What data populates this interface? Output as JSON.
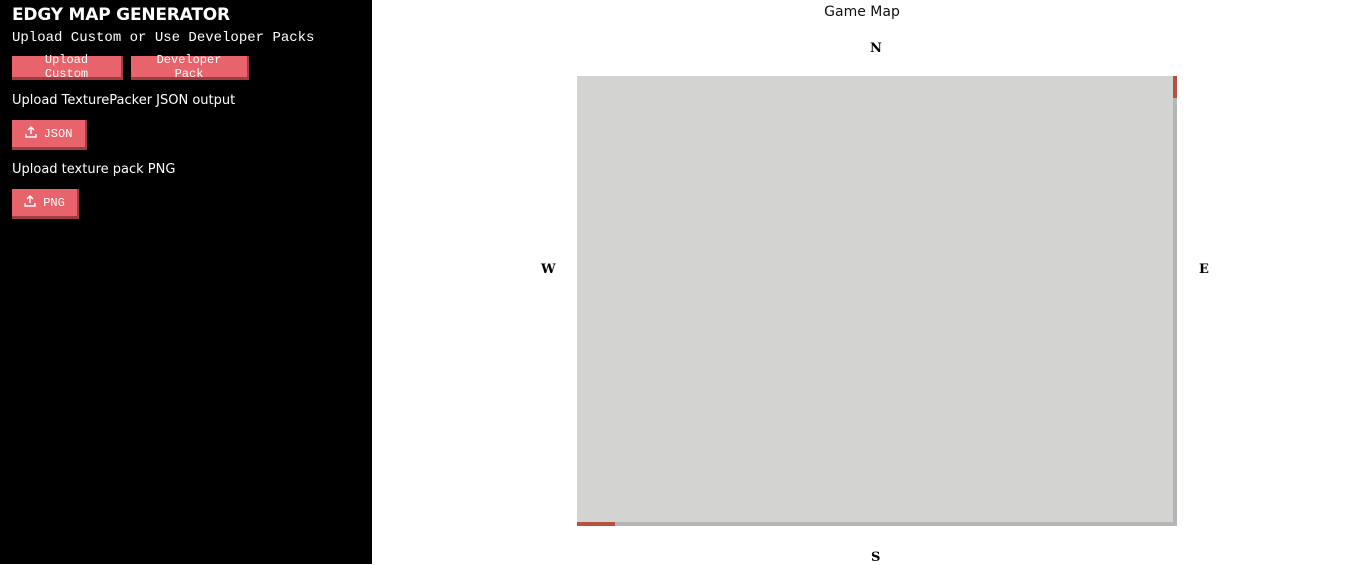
{
  "sidebar": {
    "title": "EDGY MAP GENERATOR",
    "subtitle": "Upload Custom or Use Developer Packs",
    "upload_custom_label": "Upload Custom",
    "developer_pack_label": "Developer Pack",
    "json_section_label": "Upload TexturePacker JSON output",
    "json_button_label": "JSON",
    "png_section_label": "Upload texture pack PNG",
    "png_button_label": "PNG",
    "upload_icon": "upload-icon",
    "button_color": "#e8636b"
  },
  "map": {
    "title": "Game Map",
    "north": "N",
    "south": "S",
    "east": "E",
    "west": "W",
    "background_color": "#d3d3d1"
  }
}
